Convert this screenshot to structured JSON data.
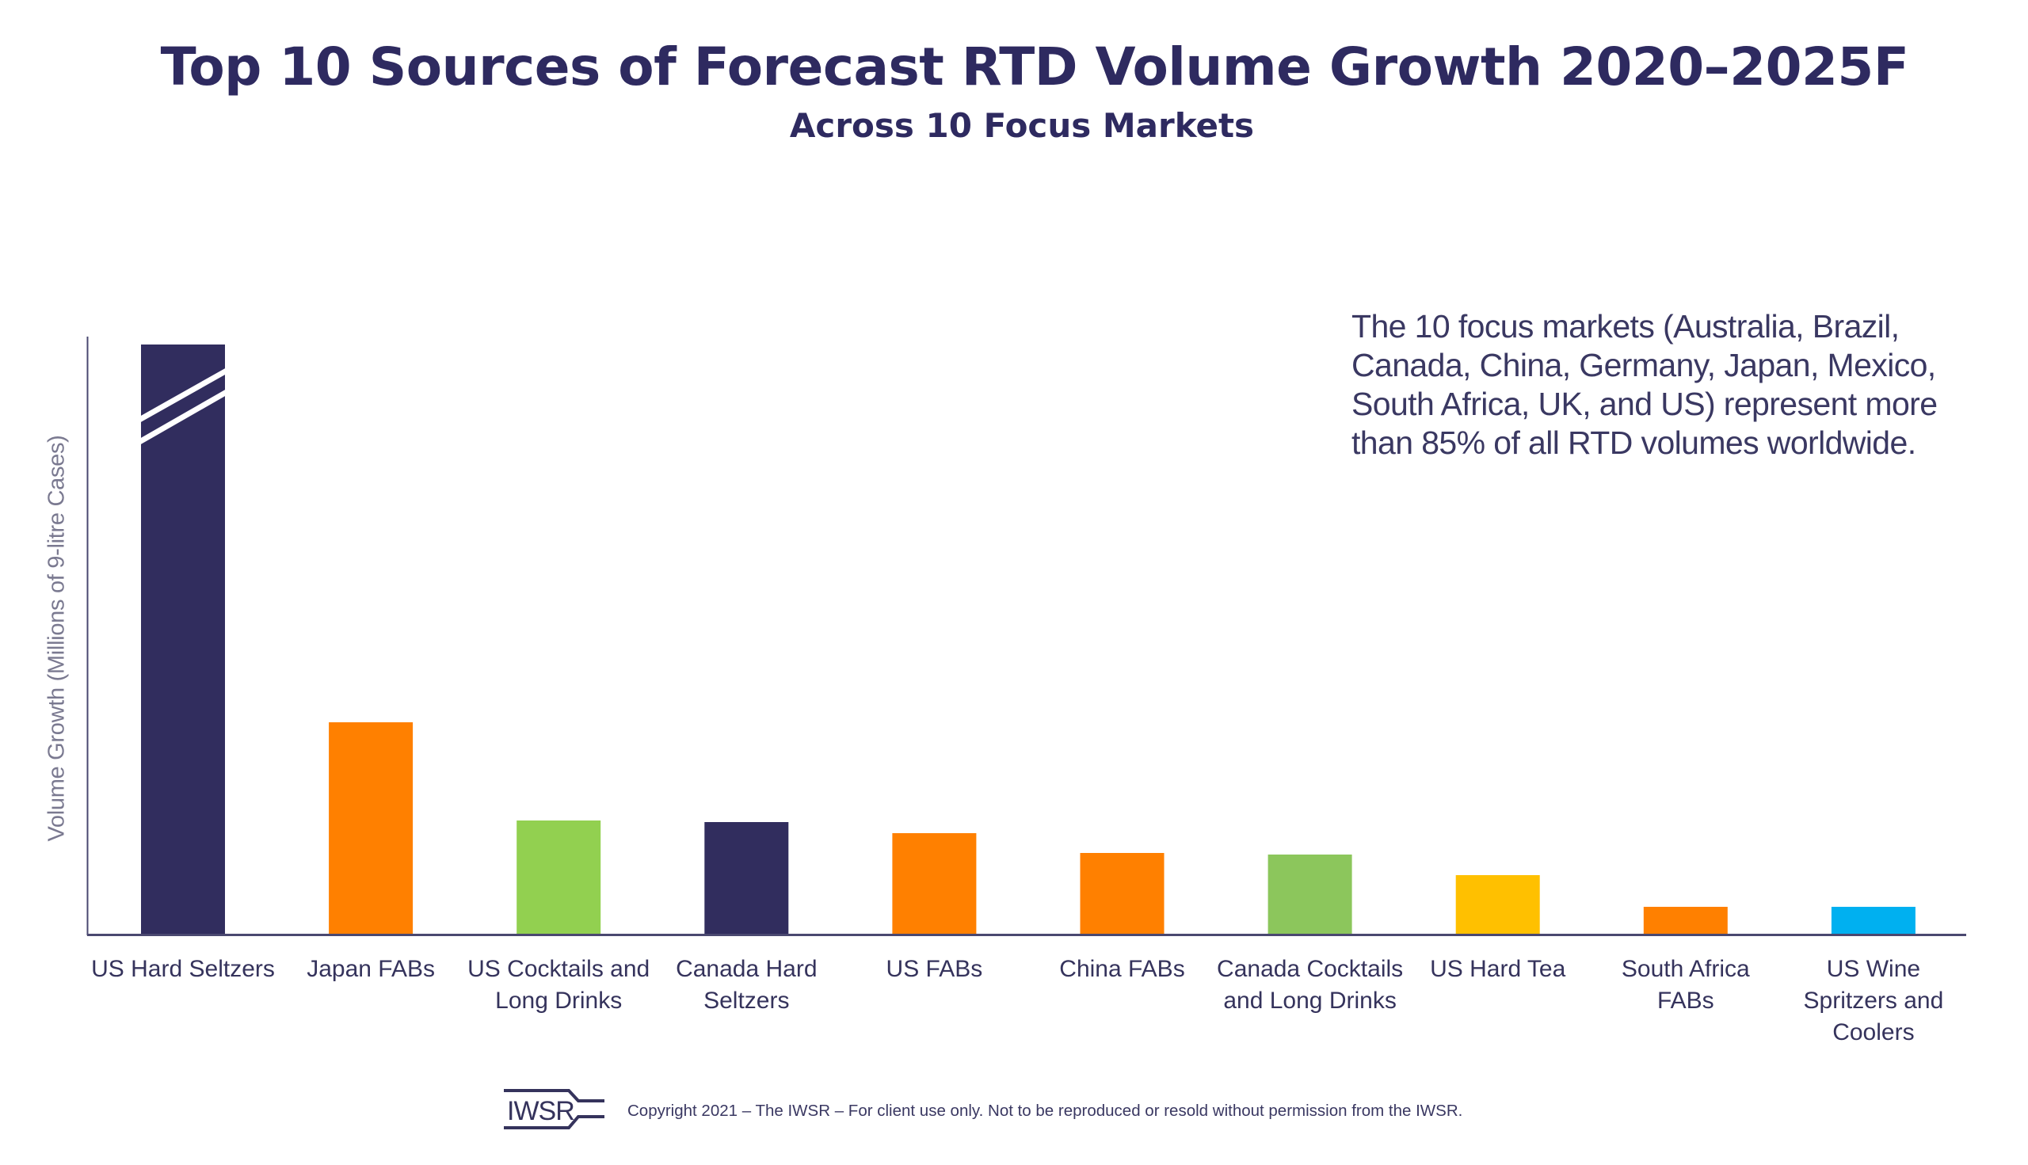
{
  "chart_data": {
    "type": "bar",
    "title": "Top 10 Sources of Forecast RTD Volume Growth 2020–2025F",
    "subtitle": "Across 10 Focus Markets",
    "xlabel": "",
    "ylabel": "Volume Growth (Millions of 9-litre Cases)",
    "ylim": [
      0,
      75.5
    ],
    "y_ticks_shown": false,
    "grid": false,
    "legend": "none",
    "values_note": "No y-axis tick labels shown; values are relative estimates read from bar heights. US Hard Seltzers bar is truncated with an axis-break mark.",
    "categories": [
      "US Hard Seltzers",
      "Japan FABs",
      "US Cocktails and Long Drinks",
      "Canada Hard Seltzers",
      "US FABs",
      "China FABs",
      "Canada Cocktails and Long Drinks",
      "US Hard Tea",
      "South Africa FABs",
      "US Wine Spritzers and Coolers"
    ],
    "category_label_lines": [
      [
        "US Hard Seltzers"
      ],
      [
        "Japan FABs"
      ],
      [
        "US Cocktails and",
        "Long Drinks"
      ],
      [
        "Canada Hard",
        "Seltzers"
      ],
      [
        "US FABs"
      ],
      [
        "China FABs"
      ],
      [
        "Canada Cocktails",
        "and Long Drinks"
      ],
      [
        "US Hard Tea"
      ],
      [
        "South Africa",
        "FABs"
      ],
      [
        "US Wine",
        "Spritzers and",
        "Coolers"
      ]
    ],
    "values": [
      74.5,
      26.8,
      14.4,
      14.2,
      12.8,
      10.3,
      10.1,
      7.5,
      3.5,
      3.5
    ],
    "axis_break": [
      true,
      false,
      false,
      false,
      false,
      false,
      false,
      false,
      false,
      false
    ],
    "colors": [
      "#312D5E",
      "#FF8000",
      "#92D050",
      "#312D5E",
      "#FF8000",
      "#FF8000",
      "#8CC65C",
      "#FFC000",
      "#FF8000",
      "#00B0F0"
    ],
    "annotation": "The 10 focus markets (Australia, Brazil, Canada, China, Germany, Japan, Mexico, South Africa, UK, and US) represent more than 85% of all RTD volumes worldwide."
  },
  "footer": {
    "logo_text": "IWSR",
    "copyright": "Copyright 2021 – The IWSR – For client use only. Not to be reproduced or resold without permission from the IWSR."
  },
  "colors": {
    "title": "#2E2A60",
    "axis": "#4A4870",
    "ylabel": "#7A7990"
  }
}
